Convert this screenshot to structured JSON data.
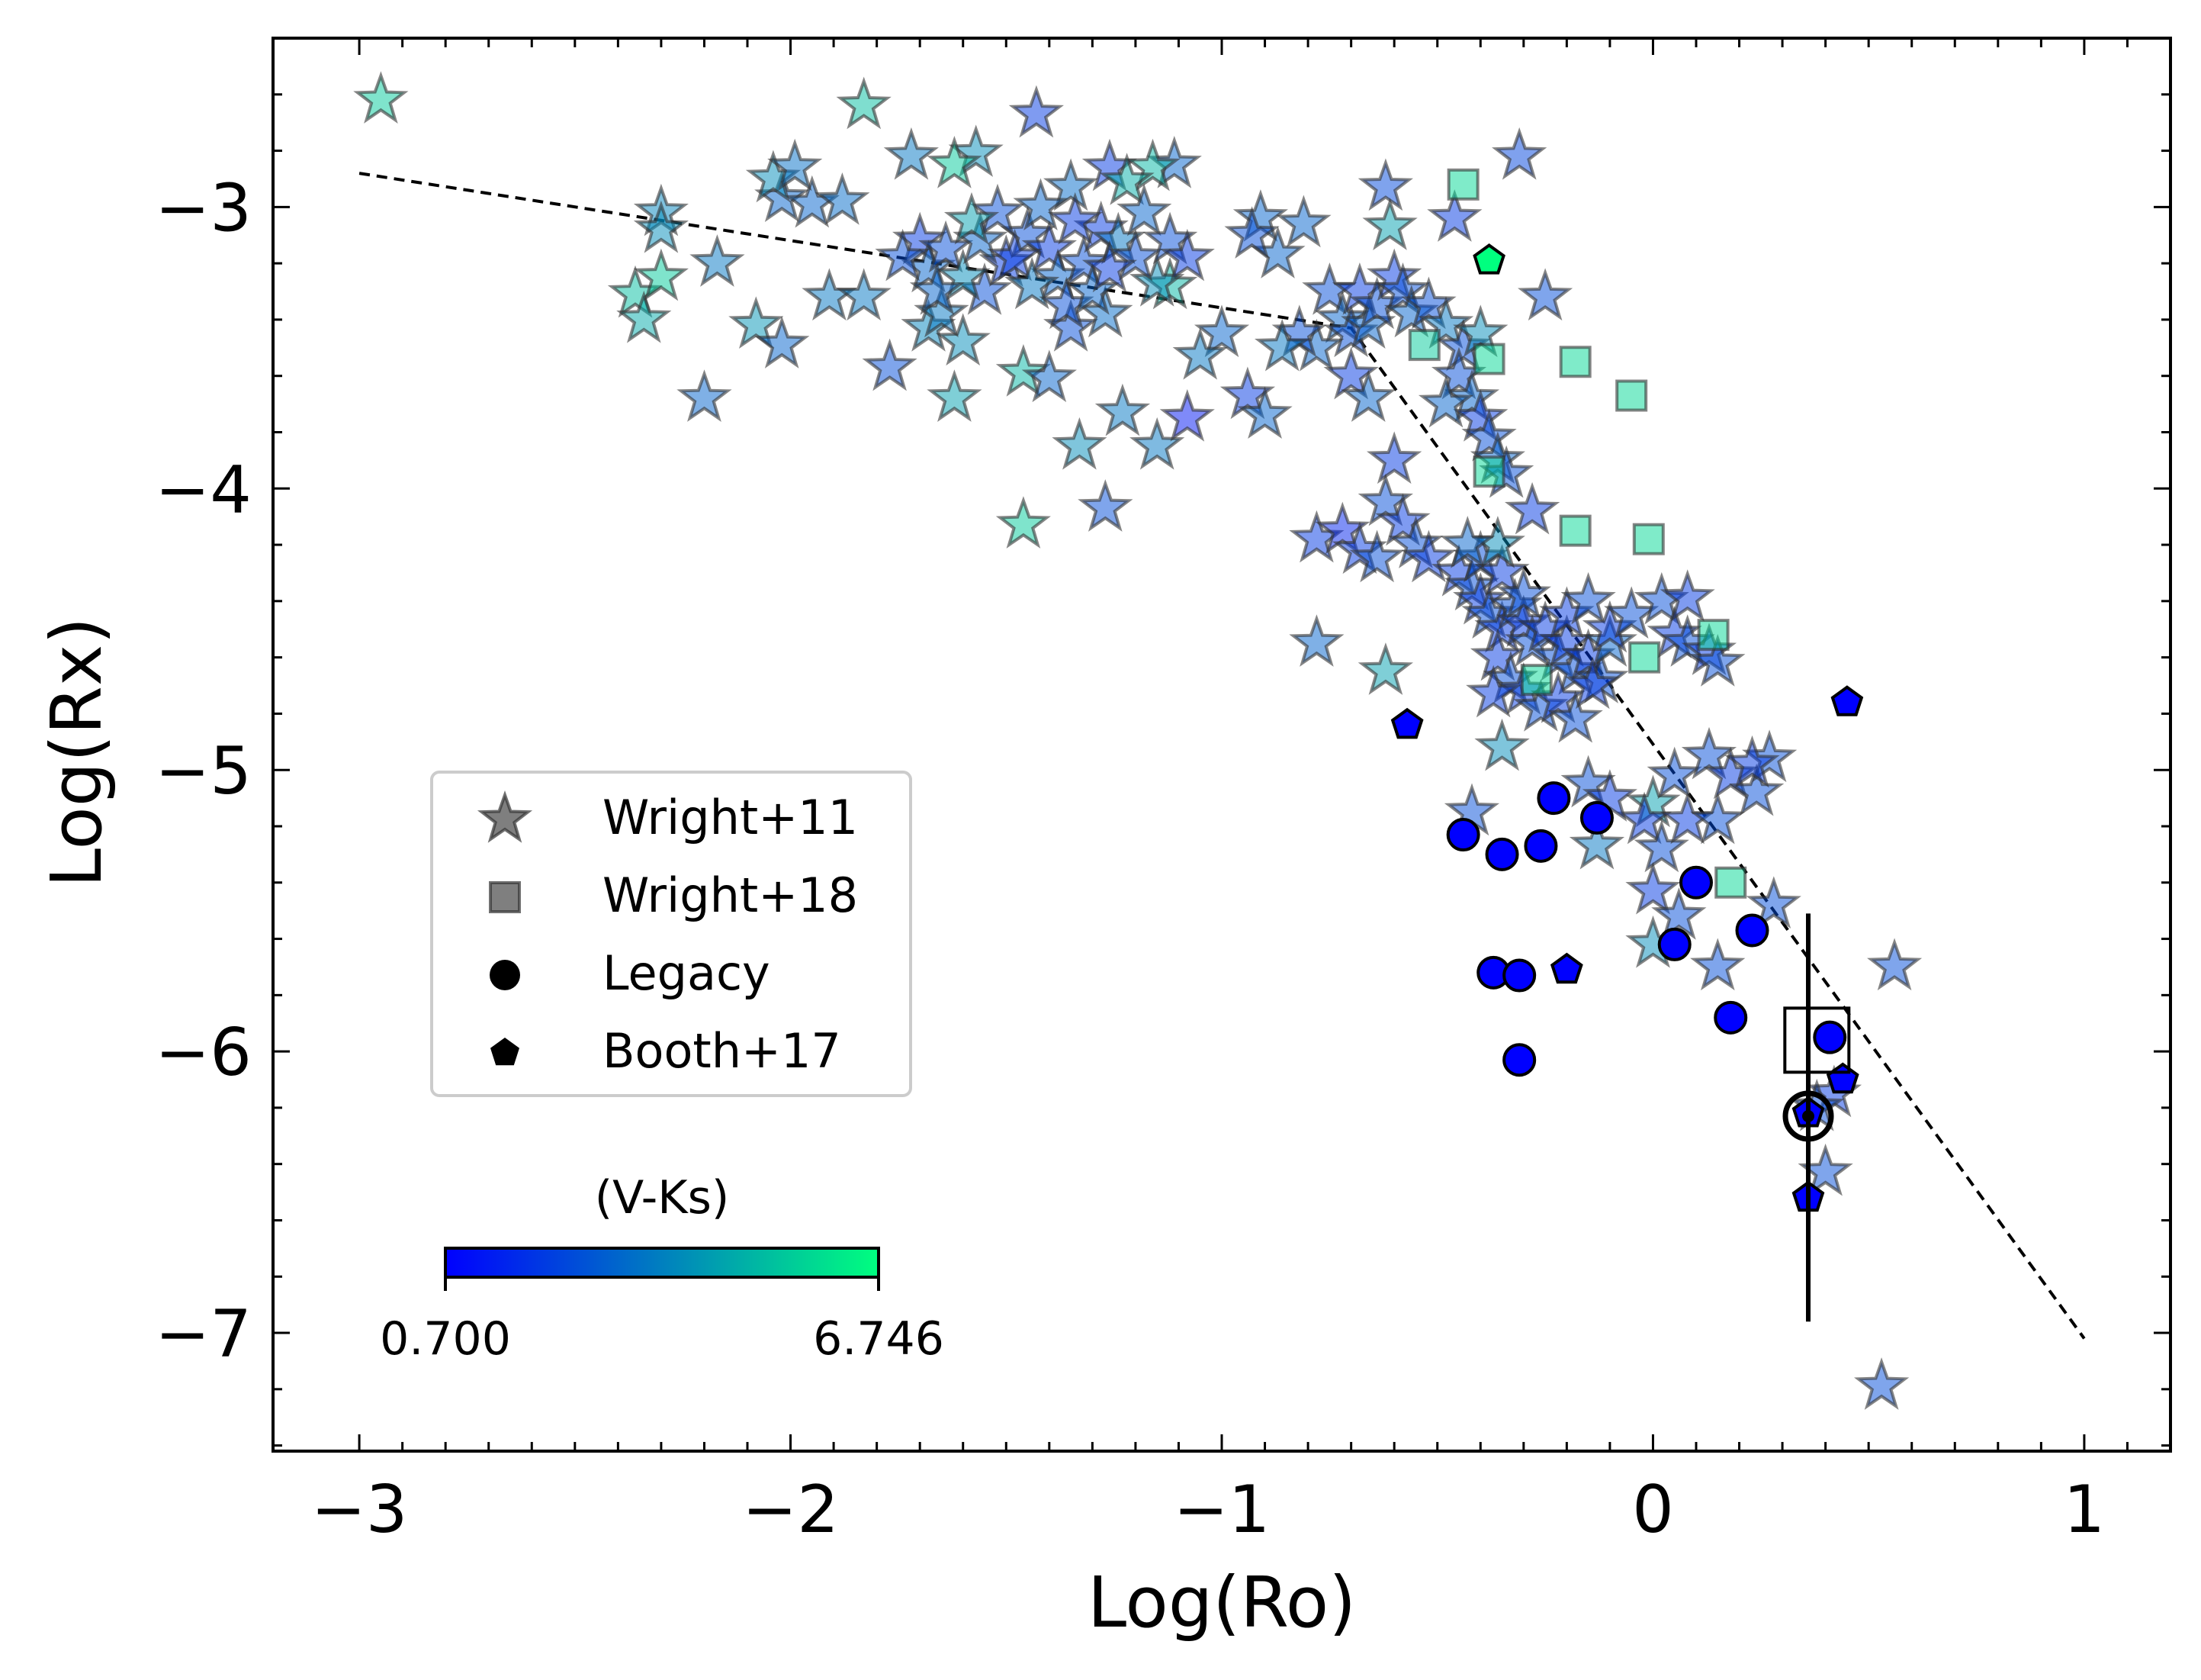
{
  "chart_data": {
    "type": "scatter",
    "xlabel": "Log(Ro)",
    "ylabel": "Log(Rx)",
    "xlim": [
      -3.2,
      1.2
    ],
    "ylim": [
      -7.42,
      -2.4
    ],
    "xticks": [
      -3,
      -2,
      -1,
      0,
      1
    ],
    "yticks": [
      -3,
      -4,
      -5,
      -6,
      -7
    ],
    "xtick_labels": [
      "−3",
      "−2",
      "−1",
      "0",
      "1"
    ],
    "ytick_labels": [
      "−3",
      "−4",
      "−5",
      "−6",
      "−7"
    ],
    "fit_line": [
      [
        -3.0,
        -2.88
      ],
      [
        -0.7,
        -3.43
      ],
      [
        1.0,
        -7.02
      ]
    ],
    "colorbar": {
      "label": "(V-Ks)",
      "min": 0.7,
      "max": 6.746,
      "min_label": "0.700",
      "max_label": "6.746",
      "colors": [
        "#0000ff",
        "#00ff7f"
      ]
    },
    "legend": [
      {
        "name": "Wright+11",
        "marker": "star"
      },
      {
        "name": "Wright+18",
        "marker": "square"
      },
      {
        "name": "Legacy",
        "marker": "circle"
      },
      {
        "name": "Booth+17",
        "marker": "pentagon"
      }
    ],
    "series": [
      {
        "name": "Wright+11",
        "marker": "star",
        "points": [
          [
            -2.95,
            -2.62,
            5.5
          ],
          [
            -1.83,
            -2.64,
            5.2
          ],
          [
            -1.43,
            -2.67,
            2.0
          ],
          [
            -1.26,
            -2.86,
            2.0
          ],
          [
            -1.72,
            -2.82,
            3.5
          ],
          [
            -1.57,
            -2.81,
            4.0
          ],
          [
            -1.62,
            -2.85,
            5.5
          ],
          [
            -1.11,
            -2.85,
            3.0
          ],
          [
            -1.16,
            -2.86,
            5.0
          ],
          [
            -1.22,
            -2.91,
            4.8
          ],
          [
            -1.35,
            -2.93,
            3.2
          ],
          [
            -0.91,
            -3.04,
            3.0
          ],
          [
            -0.31,
            -2.82,
            2.3
          ],
          [
            -0.62,
            -2.93,
            2.4
          ],
          [
            -0.61,
            -3.07,
            4.5
          ],
          [
            -0.46,
            -3.04,
            2.0
          ],
          [
            -2.3,
            -3.02,
            3.8
          ],
          [
            -2.3,
            -3.08,
            4.0
          ],
          [
            -2.02,
            -2.97,
            3.0
          ],
          [
            -1.95,
            -2.99,
            3.0
          ],
          [
            -1.88,
            -2.98,
            3.2
          ],
          [
            -2.04,
            -2.9,
            4.0
          ],
          [
            -1.99,
            -2.86,
            3.3
          ],
          [
            -2.36,
            -3.31,
            5.2
          ],
          [
            -2.34,
            -3.4,
            4.7
          ],
          [
            -2.3,
            -3.25,
            5.5
          ],
          [
            -2.17,
            -3.2,
            3.5
          ],
          [
            -2.08,
            -3.42,
            4.2
          ],
          [
            -2.02,
            -3.49,
            3.0
          ],
          [
            -1.91,
            -3.32,
            3.5
          ],
          [
            -1.83,
            -3.32,
            3.5
          ],
          [
            -2.2,
            -3.68,
            3.0
          ],
          [
            -1.77,
            -3.57,
            2.5
          ],
          [
            -1.68,
            -3.43,
            3.8
          ],
          [
            -1.6,
            -3.48,
            4.0
          ],
          [
            -1.65,
            -3.38,
            3.5
          ],
          [
            -1.62,
            -3.68,
            4.5
          ],
          [
            -1.46,
            -3.59,
            5.0
          ],
          [
            -1.4,
            -3.61,
            3.0
          ],
          [
            -1.35,
            -3.43,
            2.5
          ],
          [
            -1.27,
            -3.38,
            3.2
          ],
          [
            -1.23,
            -3.73,
            3.5
          ],
          [
            -1.33,
            -3.85,
            4.0
          ],
          [
            -1.15,
            -3.85,
            3.5
          ],
          [
            -1.08,
            -3.75,
            1.2
          ],
          [
            -1.27,
            -4.07,
            2.5
          ],
          [
            -1.46,
            -4.13,
            5.5
          ],
          [
            -0.94,
            -3.67,
            2.0
          ],
          [
            -0.9,
            -3.74,
            3.0
          ],
          [
            -0.87,
            -3.17,
            3.0
          ],
          [
            -0.93,
            -3.1,
            2.5
          ],
          [
            -0.81,
            -3.06,
            3.0
          ],
          [
            -1.0,
            -3.45,
            3.0
          ],
          [
            -1.05,
            -3.53,
            3.5
          ],
          [
            -1.12,
            -3.28,
            5.0
          ],
          [
            -1.15,
            -3.27,
            4.0
          ],
          [
            -1.55,
            -3.3,
            2.5
          ],
          [
            -1.5,
            -3.2,
            2.0
          ],
          [
            -1.45,
            -3.1,
            2.5
          ],
          [
            -1.4,
            -3.15,
            2.0
          ],
          [
            -1.38,
            -3.25,
            3.0
          ],
          [
            -1.32,
            -3.2,
            2.5
          ],
          [
            -1.28,
            -3.08,
            2.0
          ],
          [
            -1.24,
            -3.12,
            3.5
          ],
          [
            -1.2,
            -3.18,
            2.5
          ],
          [
            -1.7,
            -3.12,
            2.0
          ],
          [
            -1.68,
            -3.22,
            3.0
          ],
          [
            -1.64,
            -3.15,
            2.5
          ],
          [
            -1.6,
            -3.25,
            4.0
          ],
          [
            -1.56,
            -3.12,
            3.0
          ],
          [
            -1.52,
            -3.02,
            2.5
          ],
          [
            -1.48,
            -3.18,
            2.0
          ],
          [
            -1.44,
            -3.28,
            3.5
          ],
          [
            -1.36,
            -3.35,
            2.5
          ],
          [
            -1.3,
            -3.3,
            3.0
          ],
          [
            -1.26,
            -3.22,
            2.0
          ],
          [
            -1.18,
            -3.02,
            3.0
          ],
          [
            -1.12,
            -3.12,
            2.5
          ],
          [
            -1.08,
            -3.18,
            2.0
          ],
          [
            -1.74,
            -3.18,
            2.5
          ],
          [
            -1.66,
            -3.3,
            3.0
          ],
          [
            -1.58,
            -3.05,
            4.5
          ],
          [
            -1.42,
            -3.0,
            3.0
          ],
          [
            -1.34,
            -3.05,
            2.0
          ],
          [
            -0.75,
            -3.3,
            2.5
          ],
          [
            -0.72,
            -3.4,
            3.0
          ],
          [
            -0.7,
            -3.45,
            2.5
          ],
          [
            -0.68,
            -3.3,
            2.0
          ],
          [
            -0.66,
            -3.42,
            3.0
          ],
          [
            -0.64,
            -3.35,
            2.5
          ],
          [
            -0.78,
            -3.5,
            3.0
          ],
          [
            -0.82,
            -3.45,
            2.5
          ],
          [
            -0.86,
            -3.5,
            3.5
          ],
          [
            -0.6,
            -3.25,
            2.0
          ],
          [
            -0.58,
            -3.3,
            2.5
          ],
          [
            -0.56,
            -3.38,
            3.0
          ],
          [
            -0.52,
            -3.35,
            2.5
          ],
          [
            -0.48,
            -3.42,
            3.5
          ],
          [
            -0.44,
            -3.5,
            2.5
          ],
          [
            -0.4,
            -3.45,
            4.0
          ],
          [
            -0.7,
            -3.6,
            2.0
          ],
          [
            -0.66,
            -3.68,
            3.0
          ],
          [
            -0.45,
            -3.6,
            2.5
          ],
          [
            -0.42,
            -3.68,
            3.0
          ],
          [
            -0.4,
            -3.75,
            2.0
          ],
          [
            -0.38,
            -3.82,
            2.5
          ],
          [
            -0.36,
            -3.9,
            3.0
          ],
          [
            -0.34,
            -3.95,
            2.5
          ],
          [
            -0.6,
            -3.9,
            2.0
          ],
          [
            -0.62,
            -4.05,
            2.5
          ],
          [
            -0.58,
            -4.12,
            2.0
          ],
          [
            -0.55,
            -4.2,
            2.5
          ],
          [
            -0.52,
            -4.25,
            2.0
          ],
          [
            -0.78,
            -4.18,
            2.0
          ],
          [
            -0.72,
            -4.15,
            1.5
          ],
          [
            -0.68,
            -4.22,
            2.0
          ],
          [
            -0.64,
            -4.25,
            2.5
          ],
          [
            -0.45,
            -4.3,
            2.0
          ],
          [
            -0.42,
            -4.35,
            2.5
          ],
          [
            -0.4,
            -4.4,
            2.0
          ],
          [
            -0.38,
            -4.45,
            2.5
          ],
          [
            -0.35,
            -4.5,
            2.0
          ],
          [
            -0.32,
            -4.42,
            2.5
          ],
          [
            -0.3,
            -4.48,
            2.0
          ],
          [
            -0.28,
            -4.55,
            2.5
          ],
          [
            -0.25,
            -4.5,
            2.0
          ],
          [
            -0.22,
            -4.6,
            2.5
          ],
          [
            -0.2,
            -4.55,
            2.0
          ],
          [
            -0.18,
            -4.65,
            2.5
          ],
          [
            -0.15,
            -4.6,
            2.0
          ],
          [
            -0.12,
            -4.68,
            2.5
          ],
          [
            -0.1,
            -4.55,
            3.0
          ],
          [
            -0.36,
            -4.6,
            2.0
          ],
          [
            -0.33,
            -4.68,
            2.5
          ],
          [
            -0.3,
            -4.72,
            2.0
          ],
          [
            -0.26,
            -4.78,
            2.5
          ],
          [
            -0.22,
            -4.75,
            2.0
          ],
          [
            -0.18,
            -4.82,
            2.5
          ],
          [
            -0.14,
            -4.7,
            2.0
          ],
          [
            -0.4,
            -4.25,
            2.5
          ],
          [
            -0.35,
            -4.3,
            2.0
          ],
          [
            -0.3,
            -4.38,
            2.5
          ],
          [
            -0.2,
            -4.45,
            2.0
          ],
          [
            -0.15,
            -4.4,
            2.5
          ],
          [
            -0.1,
            -4.5,
            2.0
          ],
          [
            -0.05,
            -4.45,
            2.5
          ],
          [
            0.02,
            -4.4,
            2.5
          ],
          [
            0.05,
            -4.52,
            2.0
          ],
          [
            0.08,
            -4.55,
            2.5
          ],
          [
            0.13,
            -4.58,
            2.0
          ],
          [
            0.15,
            -4.62,
            2.5
          ],
          [
            0.08,
            -4.39,
            2.0
          ],
          [
            -0.78,
            -4.55,
            3.0
          ],
          [
            -0.62,
            -4.65,
            4.5
          ],
          [
            -0.37,
            -4.73,
            2.0
          ],
          [
            -0.35,
            -4.92,
            4.0
          ],
          [
            -0.36,
            -4.2,
            4.0
          ],
          [
            -0.43,
            -4.2,
            3.0
          ],
          [
            -0.28,
            -4.08,
            2.0
          ],
          [
            -0.25,
            -3.32,
            2.5
          ],
          [
            -0.48,
            -3.7,
            3.0
          ],
          [
            -0.15,
            -5.05,
            2.5
          ],
          [
            -0.13,
            -5.27,
            3.5
          ],
          [
            -0.42,
            -5.15,
            2.5
          ],
          [
            0.0,
            -5.12,
            4.5
          ],
          [
            -0.02,
            -5.18,
            2.0
          ],
          [
            0.02,
            -5.28,
            2.5
          ],
          [
            0.05,
            -5.02,
            2.5
          ],
          [
            0.08,
            -5.18,
            2.0
          ],
          [
            0.15,
            -5.18,
            2.5
          ],
          [
            0.13,
            -4.95,
            2.5
          ],
          [
            0.18,
            -5.02,
            2.0
          ],
          [
            0.24,
            -5.08,
            2.5
          ],
          [
            0.27,
            -4.96,
            2.5
          ],
          [
            0.23,
            -4.98,
            2.0
          ],
          [
            0.0,
            -5.43,
            2.0
          ],
          [
            0.06,
            -5.52,
            2.5
          ],
          [
            0.28,
            -5.48,
            2.5
          ],
          [
            0.15,
            -5.7,
            2.5
          ],
          [
            0.0,
            -5.62,
            4.0
          ],
          [
            0.53,
            -7.19,
            2.5
          ],
          [
            0.56,
            -5.7,
            2.5
          ],
          [
            0.4,
            -6.43,
            2.5
          ],
          [
            0.42,
            -6.15,
            2.0
          ],
          [
            0.38,
            -6.2,
            2.5
          ],
          [
            -0.1,
            -5.1,
            2.0
          ]
        ]
      },
      {
        "name": "Wright+18",
        "marker": "square",
        "points": [
          [
            -0.44,
            -2.92,
            5.8
          ],
          [
            -0.53,
            -3.49,
            5.5
          ],
          [
            -0.38,
            -3.54,
            5.8
          ],
          [
            -0.18,
            -3.55,
            5.8
          ],
          [
            -0.05,
            -3.67,
            5.8
          ],
          [
            -0.38,
            -3.94,
            5.8
          ],
          [
            -0.18,
            -4.15,
            5.8
          ],
          [
            -0.01,
            -4.18,
            5.8
          ],
          [
            0.14,
            -4.52,
            5.8
          ],
          [
            -0.02,
            -4.6,
            5.8
          ],
          [
            -0.27,
            -4.68,
            5.8
          ],
          [
            0.18,
            -5.4,
            5.8
          ]
        ]
      },
      {
        "name": "Legacy",
        "marker": "circle",
        "points": [
          [
            -0.23,
            -5.1,
            0.7
          ],
          [
            -0.13,
            -5.17,
            0.7
          ],
          [
            -0.44,
            -5.23,
            0.7
          ],
          [
            -0.35,
            -5.3,
            0.7
          ],
          [
            -0.26,
            -5.27,
            0.7
          ],
          [
            0.1,
            -5.4,
            0.7
          ],
          [
            0.23,
            -5.57,
            0.7
          ],
          [
            0.05,
            -5.62,
            0.7
          ],
          [
            -0.37,
            -5.72,
            0.7
          ],
          [
            -0.31,
            -5.73,
            0.7
          ],
          [
            0.18,
            -5.88,
            0.7
          ],
          [
            0.41,
            -5.95,
            0.7
          ],
          [
            -0.31,
            -6.03,
            0.7
          ]
        ]
      },
      {
        "name": "Booth+17",
        "marker": "pentagon",
        "points": [
          [
            -0.38,
            -3.19,
            6.746
          ],
          [
            -0.57,
            -4.84,
            0.7
          ],
          [
            0.45,
            -4.76,
            0.7
          ],
          [
            -0.2,
            -5.71,
            0.7
          ],
          [
            0.44,
            -6.1,
            0.7
          ],
          [
            0.36,
            -6.22,
            0.7
          ],
          [
            0.36,
            -6.52,
            0.7
          ]
        ]
      }
    ],
    "annotations": [
      {
        "name": "sun-symbol",
        "x": 0.36,
        "y": -6.23
      },
      {
        "name": "open-square",
        "x": 0.38,
        "y": -5.96
      },
      {
        "name": "error-bar",
        "x": 0.36,
        "y_low": -6.96,
        "y_high": -5.51
      }
    ]
  }
}
